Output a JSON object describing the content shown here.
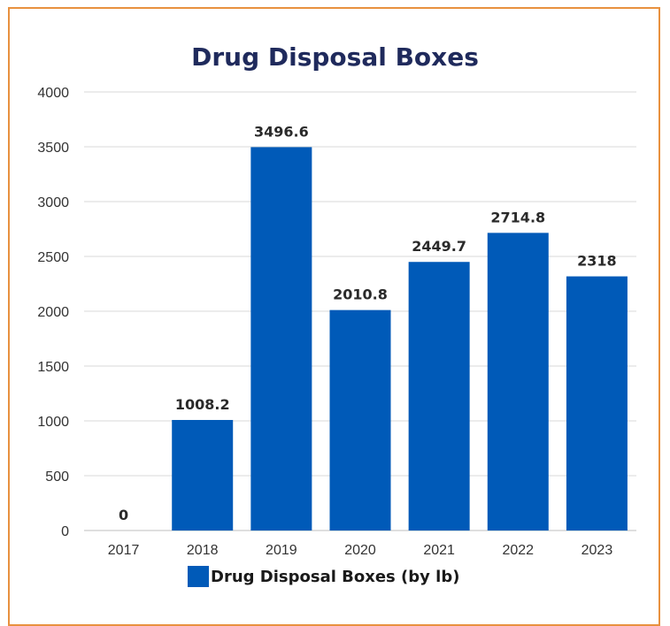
{
  "chart_data": {
    "type": "bar",
    "title": "Drug Disposal Boxes",
    "xlabel": "",
    "ylabel": "",
    "categories": [
      "2017",
      "2018",
      "2019",
      "2020",
      "2021",
      "2022",
      "2023"
    ],
    "series": [
      {
        "name": "Drug Disposal Boxes (by lb)",
        "values": [
          0,
          1008.2,
          3496.6,
          2010.8,
          2449.7,
          2714.8,
          2318
        ],
        "data_labels": [
          "0",
          "1008.2",
          "3496.6",
          "2010.8",
          "2449.7",
          "2714.8",
          "2318"
        ]
      }
    ],
    "ylim": [
      0,
      4000
    ],
    "yticks": [
      0,
      500,
      1000,
      1500,
      2000,
      2500,
      3000,
      3500,
      4000
    ],
    "grid": true,
    "legend_position": "bottom",
    "colors": {
      "bar": "#005ab8",
      "frame": "#e8913f",
      "title": "#1f2a5c",
      "grid": "#d9d9d9"
    }
  }
}
